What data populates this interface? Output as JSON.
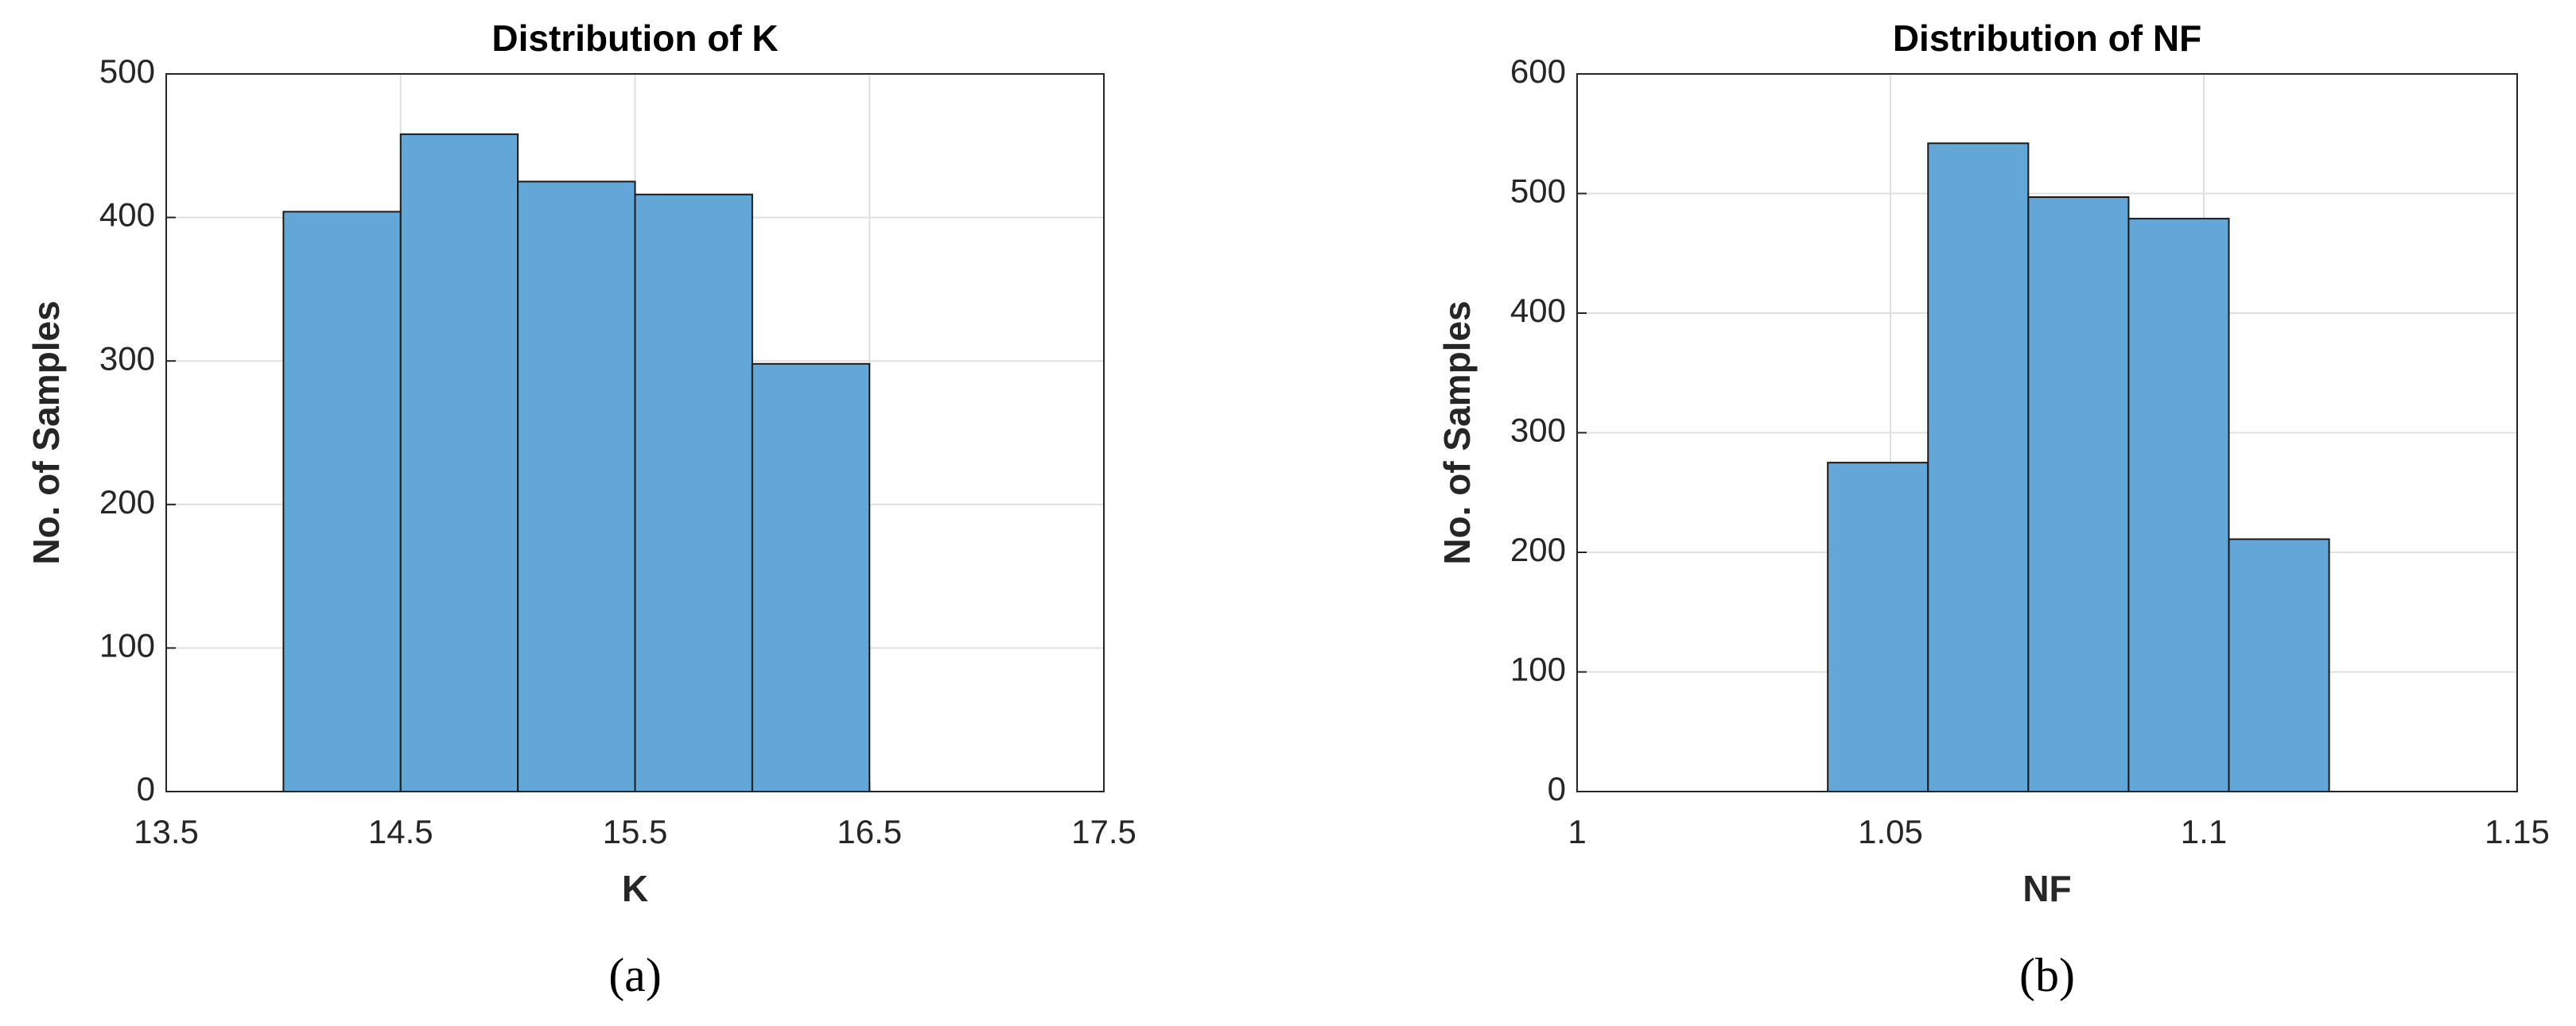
{
  "chart_data": [
    {
      "type": "histogram",
      "title": "Distribution of K",
      "xlabel": "K",
      "ylabel": "No. of Samples",
      "caption": "(a)",
      "bins": [
        14,
        14.5,
        15,
        15.5,
        16,
        16.5
      ],
      "values": [
        404,
        458,
        425,
        416,
        298
      ],
      "color": "#62a7d8",
      "xlim": [
        13.5,
        17.5
      ],
      "xticks": [
        13.5,
        14.5,
        15.5,
        16.5,
        17.5
      ],
      "ylim": [
        0,
        500
      ],
      "yticks": [
        0,
        100,
        200,
        300,
        400,
        500
      ],
      "grid": true
    },
    {
      "type": "histogram",
      "title": "Distribution of NF",
      "xlabel": "NF",
      "ylabel": "No. of Samples",
      "caption": "(b)",
      "bins": [
        1.04,
        1.056,
        1.072,
        1.088,
        1.104,
        1.12
      ],
      "values": [
        275,
        542,
        497,
        479,
        211
      ],
      "color": "#62a7d8",
      "xlim": [
        1,
        1.15
      ],
      "xticks": [
        1,
        1.05,
        1.1,
        1.15
      ],
      "ylim": [
        0,
        600
      ],
      "yticks": [
        0,
        100,
        200,
        300,
        400,
        500,
        600
      ],
      "grid": true
    }
  ]
}
